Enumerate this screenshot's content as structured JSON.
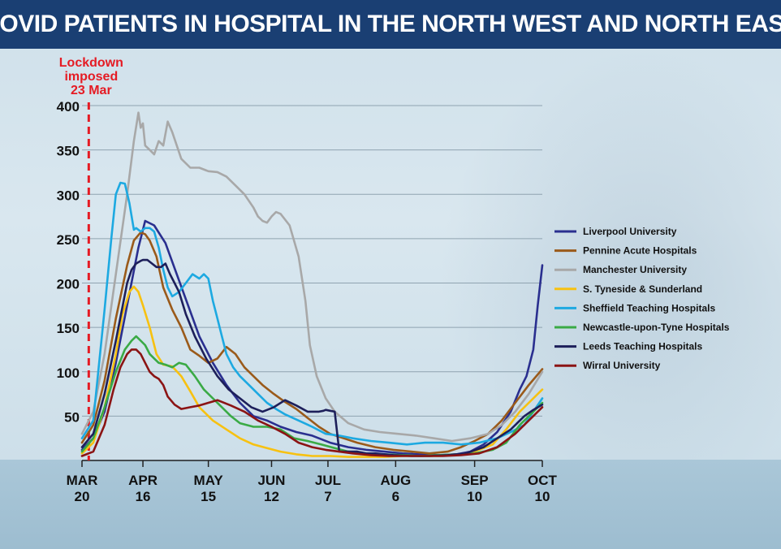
{
  "header": {
    "title": "COVID PATIENTS IN HOSPITAL IN THE NORTH WEST AND NORTH EAST"
  },
  "chart_data": {
    "type": "line",
    "title": "COVID PATIENTS IN HOSPITAL IN THE NORTH WEST AND NORTH EAST",
    "xlabel": "",
    "ylabel": "",
    "ylim": [
      0,
      400
    ],
    "xlim": [
      0,
      204
    ],
    "grid": true,
    "yticks": [
      50,
      100,
      150,
      200,
      250,
      300,
      350,
      400
    ],
    "yticklabels": [
      "50",
      "100",
      "150",
      "200",
      "250",
      "300",
      "350",
      "400"
    ],
    "xticks": [
      {
        "day": 0,
        "top": "MAR",
        "bottom": "20"
      },
      {
        "day": 27,
        "top": "APR",
        "bottom": "16"
      },
      {
        "day": 56,
        "top": "MAY",
        "bottom": "15"
      },
      {
        "day": 84,
        "top": "JUN",
        "bottom": "12"
      },
      {
        "day": 109,
        "top": "JUL",
        "bottom": "7"
      },
      {
        "day": 139,
        "top": "AUG",
        "bottom": "6"
      },
      {
        "day": 174,
        "top": "SEP",
        "bottom": "10"
      },
      {
        "day": 204,
        "top": "OCT",
        "bottom": "10"
      }
    ],
    "annotation": {
      "day": 3,
      "lines": [
        "Lockdown",
        "imposed",
        "23 Mar"
      ],
      "color": "#e51b24"
    },
    "legend_position": "right",
    "series": [
      {
        "name": "Liverpool University",
        "color": "#2a2f8f",
        "x": [
          0,
          5,
          10,
          15,
          20,
          25,
          28,
          32,
          37,
          42,
          47,
          52,
          58,
          64,
          70,
          76,
          82,
          88,
          95,
          102,
          110,
          118,
          126,
          134,
          142,
          150,
          158,
          166,
          172,
          178,
          184,
          190,
          194,
          197,
          200,
          202,
          204
        ],
        "y": [
          12,
          25,
          55,
          110,
          175,
          240,
          270,
          265,
          245,
          210,
          175,
          140,
          110,
          85,
          65,
          50,
          45,
          38,
          32,
          28,
          20,
          15,
          12,
          10,
          8,
          7,
          6,
          7,
          10,
          18,
          32,
          55,
          80,
          95,
          125,
          175,
          220
        ]
      },
      {
        "name": "Pennine Acute Hospitals",
        "color": "#9a5a1a",
        "x": [
          0,
          5,
          10,
          15,
          20,
          23,
          26,
          28,
          30,
          33,
          36,
          40,
          44,
          48,
          52,
          56,
          60,
          64,
          68,
          72,
          76,
          80,
          85,
          90,
          95,
          100,
          105,
          110,
          116,
          122,
          130,
          138,
          146,
          154,
          162,
          168,
          174,
          180,
          186,
          192,
          198,
          204
        ],
        "y": [
          20,
          40,
          90,
          160,
          220,
          248,
          257,
          255,
          248,
          230,
          195,
          170,
          150,
          125,
          118,
          110,
          115,
          128,
          120,
          105,
          95,
          85,
          75,
          66,
          58,
          48,
          38,
          30,
          25,
          20,
          15,
          12,
          10,
          8,
          10,
          15,
          22,
          30,
          45,
          65,
          85,
          103
        ]
      },
      {
        "name": "Manchester University",
        "color": "#a8a8a8",
        "x": [
          0,
          5,
          10,
          15,
          20,
          23,
          25,
          26,
          27,
          28,
          30,
          32,
          34,
          36,
          38,
          40,
          44,
          48,
          52,
          56,
          60,
          64,
          68,
          72,
          76,
          78,
          80,
          82,
          84,
          86,
          88,
          92,
          96,
          99,
          101,
          104,
          108,
          112,
          118,
          125,
          132,
          140,
          148,
          156,
          164,
          172,
          180,
          186,
          192,
          198,
          204
        ],
        "y": [
          30,
          55,
          120,
          210,
          300,
          360,
          392,
          375,
          380,
          355,
          350,
          345,
          360,
          355,
          382,
          370,
          340,
          330,
          330,
          326,
          325,
          320,
          310,
          300,
          285,
          275,
          270,
          268,
          275,
          280,
          278,
          265,
          230,
          180,
          130,
          95,
          70,
          55,
          42,
          35,
          32,
          30,
          28,
          25,
          22,
          25,
          30,
          40,
          55,
          75,
          100
        ]
      },
      {
        "name": "S. Tyneside & Sunderland",
        "color": "#f7c111",
        "x": [
          0,
          5,
          10,
          15,
          18,
          21,
          23,
          25,
          27,
          30,
          33,
          36,
          40,
          44,
          48,
          52,
          58,
          64,
          70,
          76,
          82,
          88,
          95,
          102,
          110,
          118,
          126,
          134,
          142,
          150,
          158,
          166,
          174,
          182,
          188,
          194,
          200,
          204
        ],
        "y": [
          8,
          20,
          60,
          120,
          165,
          190,
          196,
          190,
          175,
          150,
          120,
          108,
          106,
          95,
          78,
          60,
          45,
          35,
          25,
          18,
          14,
          10,
          7,
          5,
          5,
          4,
          4,
          4,
          5,
          5,
          5,
          6,
          10,
          18,
          35,
          55,
          70,
          80
        ]
      },
      {
        "name": "Sheffield Teaching Hospitals",
        "color": "#1da9e1",
        "x": [
          0,
          5,
          10,
          13,
          15,
          17,
          19,
          21,
          23,
          24,
          26,
          28,
          30,
          32,
          34,
          36,
          38,
          40,
          43,
          46,
          49,
          52,
          54,
          56,
          58,
          60,
          62,
          64,
          67,
          70,
          74,
          78,
          82,
          86,
          90,
          96,
          102,
          108,
          114,
          120,
          128,
          136,
          144,
          152,
          160,
          168,
          176,
          184,
          190,
          196,
          200,
          204
        ],
        "y": [
          25,
          45,
          170,
          250,
          300,
          313,
          312,
          290,
          260,
          262,
          258,
          262,
          262,
          258,
          240,
          215,
          195,
          185,
          190,
          200,
          210,
          205,
          210,
          205,
          180,
          160,
          140,
          120,
          105,
          95,
          85,
          75,
          65,
          58,
          52,
          45,
          38,
          30,
          28,
          25,
          22,
          20,
          18,
          20,
          20,
          18,
          20,
          25,
          32,
          40,
          55,
          70
        ]
      },
      {
        "name": "Newcastle-upon-Tyne  Hospitals",
        "color": "#3aaa45",
        "x": [
          0,
          5,
          10,
          15,
          19,
          22,
          24,
          26,
          28,
          30,
          32,
          34,
          37,
          40,
          43,
          46,
          50,
          54,
          58,
          62,
          66,
          70,
          76,
          82,
          88,
          94,
          100,
          106,
          112,
          118,
          126,
          134,
          142,
          150,
          158,
          166,
          174,
          182,
          188,
          194,
          200,
          204
        ],
        "y": [
          10,
          25,
          60,
          100,
          125,
          135,
          140,
          135,
          130,
          120,
          115,
          110,
          108,
          105,
          110,
          108,
          95,
          80,
          70,
          60,
          50,
          42,
          38,
          38,
          35,
          25,
          22,
          18,
          14,
          10,
          8,
          7,
          6,
          5,
          6,
          7,
          8,
          12,
          20,
          40,
          55,
          65
        ]
      },
      {
        "name": "Leeds Teaching Hospitals",
        "color": "#1d1f5a",
        "x": [
          0,
          5,
          10,
          15,
          20,
          22,
          24,
          26,
          27,
          29,
          31,
          33,
          35,
          37,
          39,
          41,
          43,
          46,
          50,
          55,
          60,
          65,
          70,
          75,
          80,
          85,
          90,
          95,
          100,
          105,
          107,
          108,
          110,
          112,
          114,
          118,
          122,
          126,
          130,
          138,
          146,
          154,
          162,
          170,
          178,
          184,
          190,
          196,
          200,
          204
        ],
        "y": [
          15,
          30,
          75,
          135,
          200,
          215,
          222,
          225,
          226,
          226,
          222,
          218,
          218,
          222,
          210,
          200,
          190,
          165,
          140,
          115,
          95,
          80,
          70,
          60,
          55,
          60,
          68,
          62,
          55,
          55,
          56,
          57,
          56,
          55,
          10,
          10,
          10,
          8,
          8,
          6,
          5,
          5,
          6,
          8,
          15,
          25,
          35,
          50,
          57,
          63
        ]
      },
      {
        "name": "Wirral University",
        "color": "#8b1414",
        "x": [
          0,
          5,
          10,
          14,
          17,
          20,
          22,
          24,
          26,
          28,
          30,
          32,
          34,
          36,
          38,
          41,
          44,
          48,
          52,
          56,
          60,
          66,
          72,
          78,
          84,
          90,
          96,
          102,
          108,
          114,
          120,
          128,
          136,
          144,
          152,
          160,
          168,
          176,
          184,
          192,
          198,
          204
        ],
        "y": [
          5,
          10,
          40,
          80,
          105,
          120,
          125,
          125,
          120,
          110,
          100,
          95,
          92,
          85,
          72,
          63,
          58,
          60,
          62,
          65,
          68,
          62,
          55,
          45,
          38,
          30,
          20,
          15,
          12,
          10,
          8,
          6,
          5,
          5,
          5,
          5,
          6,
          8,
          15,
          30,
          45,
          60
        ]
      }
    ]
  }
}
